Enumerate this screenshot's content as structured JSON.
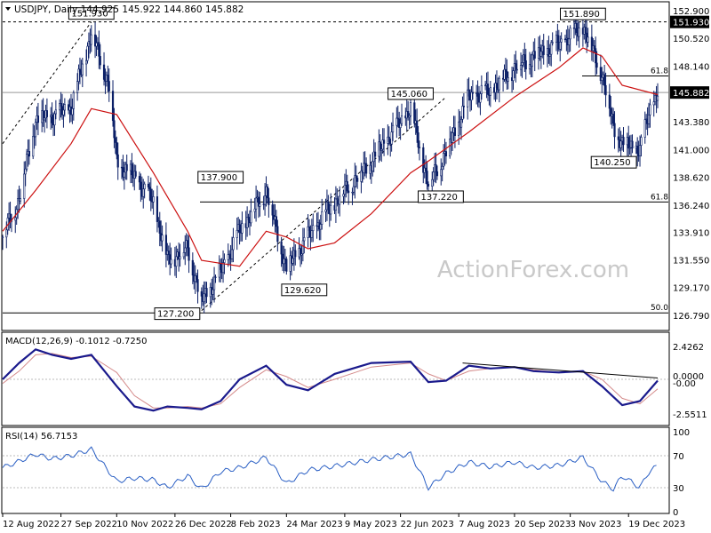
{
  "chart_data": {
    "type": "candlestick",
    "symbol": "USDJPY",
    "timeframe": "Daily",
    "header": "USDJPY, Daily  144.925 145.922 144.860 145.882",
    "watermark": "ActionForex.com",
    "price_panel": {
      "ylim": [
        125.8,
        153.2
      ],
      "y_ticks": [
        "152.900",
        "150.520",
        "148.140",
        "145.882",
        "143.380",
        "141.000",
        "138.620",
        "136.240",
        "133.910",
        "131.550",
        "129.170",
        "126.790"
      ],
      "current_price": "145.882",
      "top_line_label": "151.930",
      "fib_labels": [
        {
          "text": "61.8",
          "price": 147.3
        },
        {
          "text": "61.8",
          "price": 136.5
        },
        {
          "text": "50.0",
          "price": 127.0
        }
      ],
      "price_callouts": [
        {
          "text": "151.930",
          "date": "2022-10-21",
          "price": 151.93
        },
        {
          "text": "137.900",
          "date": "2023-01-31",
          "price": 137.9
        },
        {
          "text": "127.200",
          "date": "2023-01-16",
          "price": 127.2
        },
        {
          "text": "129.620",
          "date": "2023-03-24",
          "price": 129.62
        },
        {
          "text": "145.060",
          "date": "2023-06-30",
          "price": 145.06
        },
        {
          "text": "137.220",
          "date": "2023-07-28",
          "price": 137.22
        },
        {
          "text": "151.890",
          "date": "2023-11-13",
          "price": 151.89
        },
        {
          "text": "140.250",
          "date": "2023-12-28",
          "price": 140.25
        }
      ],
      "close_path": [
        [
          "2022-08-12",
          133.5
        ],
        [
          "2022-08-25",
          136.8
        ],
        [
          "2022-09-07",
          143.5
        ],
        [
          "2022-09-20",
          143.8
        ],
        [
          "2022-10-05",
          144.6
        ],
        [
          "2022-10-21",
          151.0
        ],
        [
          "2022-11-04",
          146.5
        ],
        [
          "2022-11-10",
          140.0
        ],
        [
          "2022-11-24",
          138.6
        ],
        [
          "2022-12-09",
          136.5
        ],
        [
          "2022-12-20",
          131.5
        ],
        [
          "2023-01-05",
          132.5
        ],
        [
          "2023-01-16",
          128.0
        ],
        [
          "2023-01-31",
          130.5
        ],
        [
          "2023-02-15",
          134.0
        ],
        [
          "2023-03-08",
          137.5
        ],
        [
          "2023-03-24",
          130.8
        ],
        [
          "2023-04-10",
          133.5
        ],
        [
          "2023-05-01",
          136.5
        ],
        [
          "2023-05-30",
          140.0
        ],
        [
          "2023-06-30",
          144.5
        ],
        [
          "2023-07-14",
          138.0
        ],
        [
          "2023-07-28",
          140.8
        ],
        [
          "2023-08-15",
          145.5
        ],
        [
          "2023-09-01",
          146.0
        ],
        [
          "2023-09-20",
          148.0
        ],
        [
          "2023-10-05",
          149.0
        ],
        [
          "2023-10-25",
          150.0
        ],
        [
          "2023-11-13",
          151.5
        ],
        [
          "2023-11-28",
          147.5
        ],
        [
          "2023-12-07",
          143.0
        ],
        [
          "2023-12-14",
          141.5
        ],
        [
          "2023-12-28",
          141.0
        ],
        [
          "2024-01-05",
          144.5
        ],
        [
          "2024-01-11",
          145.88
        ]
      ],
      "ma_path": [
        [
          "2022-08-12",
          134.0
        ],
        [
          "2022-09-07",
          137.5
        ],
        [
          "2022-10-05",
          141.5
        ],
        [
          "2022-10-21",
          144.5
        ],
        [
          "2022-11-10",
          144.0
        ],
        [
          "2022-12-09",
          139.0
        ],
        [
          "2023-01-05",
          134.0
        ],
        [
          "2023-01-16",
          131.5
        ],
        [
          "2023-02-15",
          131.0
        ],
        [
          "2023-03-08",
          134.0
        ],
        [
          "2023-03-24",
          133.5
        ],
        [
          "2023-04-10",
          132.5
        ],
        [
          "2023-05-01",
          133.0
        ],
        [
          "2023-05-30",
          135.5
        ],
        [
          "2023-06-30",
          139.0
        ],
        [
          "2023-07-14",
          140.0
        ],
        [
          "2023-08-15",
          142.5
        ],
        [
          "2023-09-20",
          145.5
        ],
        [
          "2023-10-25",
          148.0
        ],
        [
          "2023-11-13",
          149.7
        ],
        [
          "2023-11-28",
          149.0
        ],
        [
          "2023-12-14",
          146.5
        ],
        [
          "2024-01-11",
          145.7
        ]
      ]
    },
    "macd_panel": {
      "label": "MACD(12,26,9) -0.1012 -0.7250",
      "ylim": [
        -3.2,
        3.2
      ],
      "y_ticks": [
        "2.4262",
        "0.0000",
        "-0.00",
        "-2.5511"
      ],
      "macd_path": [
        [
          "2022-08-12",
          0.0
        ],
        [
          "2022-08-25",
          1.2
        ],
        [
          "2022-09-07",
          2.2
        ],
        [
          "2022-09-20",
          1.8
        ],
        [
          "2022-10-05",
          1.5
        ],
        [
          "2022-10-21",
          1.8
        ],
        [
          "2022-11-10",
          -0.5
        ],
        [
          "2022-11-24",
          -2.0
        ],
        [
          "2022-12-09",
          -2.3
        ],
        [
          "2022-12-20",
          -2.0
        ],
        [
          "2023-01-05",
          -2.1
        ],
        [
          "2023-01-16",
          -2.2
        ],
        [
          "2023-01-31",
          -1.6
        ],
        [
          "2023-02-15",
          0.0
        ],
        [
          "2023-03-08",
          1.0
        ],
        [
          "2023-03-24",
          -0.4
        ],
        [
          "2023-04-10",
          -0.8
        ],
        [
          "2023-05-01",
          0.4
        ],
        [
          "2023-05-30",
          1.2
        ],
        [
          "2023-06-30",
          1.3
        ],
        [
          "2023-07-14",
          -0.2
        ],
        [
          "2023-07-28",
          -0.1
        ],
        [
          "2023-08-15",
          1.0
        ],
        [
          "2023-09-01",
          0.8
        ],
        [
          "2023-09-20",
          0.9
        ],
        [
          "2023-10-05",
          0.6
        ],
        [
          "2023-10-25",
          0.5
        ],
        [
          "2023-11-13",
          0.6
        ],
        [
          "2023-11-28",
          -0.5
        ],
        [
          "2023-12-14",
          -1.9
        ],
        [
          "2023-12-28",
          -1.6
        ],
        [
          "2024-01-11",
          -0.1
        ]
      ],
      "signal_path": [
        [
          "2022-08-12",
          -0.3
        ],
        [
          "2022-08-25",
          0.6
        ],
        [
          "2022-09-07",
          1.8
        ],
        [
          "2022-09-20",
          1.9
        ],
        [
          "2022-10-05",
          1.6
        ],
        [
          "2022-10-21",
          1.7
        ],
        [
          "2022-11-10",
          0.5
        ],
        [
          "2022-11-24",
          -1.2
        ],
        [
          "2022-12-09",
          -2.1
        ],
        [
          "2022-12-20",
          -2.1
        ],
        [
          "2023-01-05",
          -2.0
        ],
        [
          "2023-01-16",
          -2.1
        ],
        [
          "2023-01-31",
          -1.8
        ],
        [
          "2023-02-15",
          -0.6
        ],
        [
          "2023-03-08",
          0.7
        ],
        [
          "2023-03-24",
          0.2
        ],
        [
          "2023-04-10",
          -0.6
        ],
        [
          "2023-05-01",
          0.0
        ],
        [
          "2023-05-30",
          0.9
        ],
        [
          "2023-06-30",
          1.2
        ],
        [
          "2023-07-14",
          0.4
        ],
        [
          "2023-07-28",
          -0.1
        ],
        [
          "2023-08-15",
          0.6
        ],
        [
          "2023-09-01",
          0.8
        ],
        [
          "2023-09-20",
          0.9
        ],
        [
          "2023-10-05",
          0.7
        ],
        [
          "2023-10-25",
          0.5
        ],
        [
          "2023-11-13",
          0.6
        ],
        [
          "2023-11-28",
          0.0
        ],
        [
          "2023-12-14",
          -1.4
        ],
        [
          "2023-12-28",
          -1.8
        ],
        [
          "2024-01-11",
          -0.7
        ]
      ],
      "trendline": [
        [
          "2023-08-10",
          1.2
        ],
        [
          "2024-01-11",
          0.1
        ]
      ]
    },
    "rsi_panel": {
      "label": "RSI(14) 56.7153",
      "ylim": [
        0,
        100
      ],
      "y_ticks": [
        "100",
        "70",
        "30",
        "0"
      ],
      "rsi_path": [
        [
          "2022-08-12",
          55
        ],
        [
          "2022-08-25",
          63
        ],
        [
          "2022-09-07",
          72
        ],
        [
          "2022-09-20",
          66
        ],
        [
          "2022-10-05",
          70
        ],
        [
          "2022-10-21",
          78
        ],
        [
          "2022-11-10",
          38
        ],
        [
          "2022-11-24",
          42
        ],
        [
          "2022-12-09",
          40
        ],
        [
          "2022-12-20",
          30
        ],
        [
          "2023-01-05",
          45
        ],
        [
          "2023-01-16",
          28
        ],
        [
          "2023-01-31",
          50
        ],
        [
          "2023-02-15",
          55
        ],
        [
          "2023-03-08",
          68
        ],
        [
          "2023-03-24",
          35
        ],
        [
          "2023-04-10",
          52
        ],
        [
          "2023-05-01",
          57
        ],
        [
          "2023-05-30",
          65
        ],
        [
          "2023-06-30",
          72
        ],
        [
          "2023-07-14",
          30
        ],
        [
          "2023-07-28",
          48
        ],
        [
          "2023-08-15",
          62
        ],
        [
          "2023-09-01",
          56
        ],
        [
          "2023-09-20",
          62
        ],
        [
          "2023-10-05",
          55
        ],
        [
          "2023-10-25",
          58
        ],
        [
          "2023-11-13",
          68
        ],
        [
          "2023-11-28",
          38
        ],
        [
          "2023-12-07",
          28
        ],
        [
          "2023-12-14",
          45
        ],
        [
          "2023-12-28",
          30
        ],
        [
          "2024-01-05",
          52
        ],
        [
          "2024-01-11",
          56.7
        ]
      ]
    },
    "x_axis": {
      "start": "2022-08-12",
      "end": "2024-01-11",
      "ticks": [
        {
          "label": "12 Aug 2022",
          "date": "2022-08-12"
        },
        {
          "label": "27 Sep 2022",
          "date": "2022-09-27"
        },
        {
          "label": "10 Nov 2022",
          "date": "2022-11-10"
        },
        {
          "label": "26 Dec 2022",
          "date": "2022-12-26"
        },
        {
          "label": "8 Feb 2023",
          "date": "2023-02-08"
        },
        {
          "label": "24 Mar 2023",
          "date": "2023-03-24"
        },
        {
          "label": "9 May 2023",
          "date": "2023-05-09"
        },
        {
          "label": "22 Jun 2023",
          "date": "2023-06-22"
        },
        {
          "label": "7 Aug 2023",
          "date": "2023-08-07"
        },
        {
          "label": "20 Sep 2023",
          "date": "2023-09-20"
        },
        {
          "label": "3 Nov 2023",
          "date": "2023-11-03"
        },
        {
          "label": "19 Dec 2023",
          "date": "2023-12-19"
        }
      ]
    },
    "colors": {
      "candle": "#0b1f66",
      "ma": "#cc1111",
      "macd": "#1a1a8c",
      "signal": "#d48a8a",
      "rsi": "#2a5fc4",
      "grid": "#cccccc",
      "text": "#000000",
      "watermark": "#c9c9c9"
    }
  }
}
